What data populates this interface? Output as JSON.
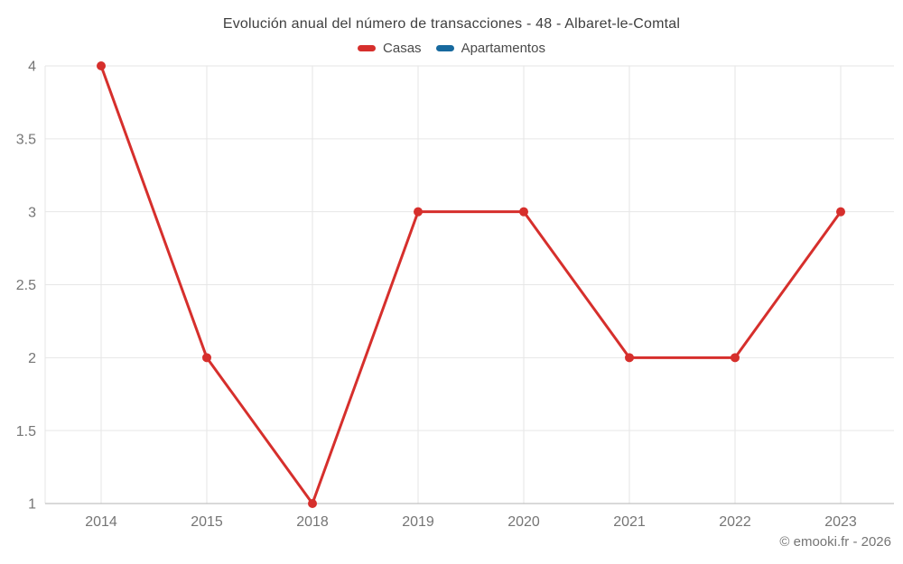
{
  "title": "Evolución anual del número de transacciones - 48 - Albaret-le-Comtal",
  "legend": {
    "items": [
      {
        "label": "Casas",
        "color": "#d62f2c"
      },
      {
        "label": "Apartamentos",
        "color": "#17699e"
      }
    ]
  },
  "footer": {
    "copyright": "© emooki.fr - 2026"
  },
  "colors": {
    "gridline": "#e6e6e6",
    "baseline": "#b3b3b3",
    "tick_label": "#757575",
    "title_text": "#3f3f3f"
  },
  "chart_data": {
    "type": "line",
    "title": "Evolución anual del número de transacciones - 48 - Albaret-le-Comtal",
    "categories": [
      "2014",
      "2015",
      "2018",
      "2019",
      "2020",
      "2021",
      "2022",
      "2023"
    ],
    "series": [
      {
        "name": "Casas",
        "color": "#d62f2c",
        "values": [
          4,
          2,
          1,
          3,
          3,
          2,
          2,
          3
        ]
      },
      {
        "name": "Apartamentos",
        "color": "#17699e",
        "values": []
      }
    ],
    "xlabel": "",
    "ylabel": "",
    "ylim": [
      1,
      4
    ],
    "yticks": [
      1,
      1.5,
      2,
      2.5,
      3,
      3.5,
      4
    ],
    "grid": true,
    "legend_position": "top-center",
    "marker": "circle",
    "marker_radius": 5,
    "line_width": 3
  }
}
